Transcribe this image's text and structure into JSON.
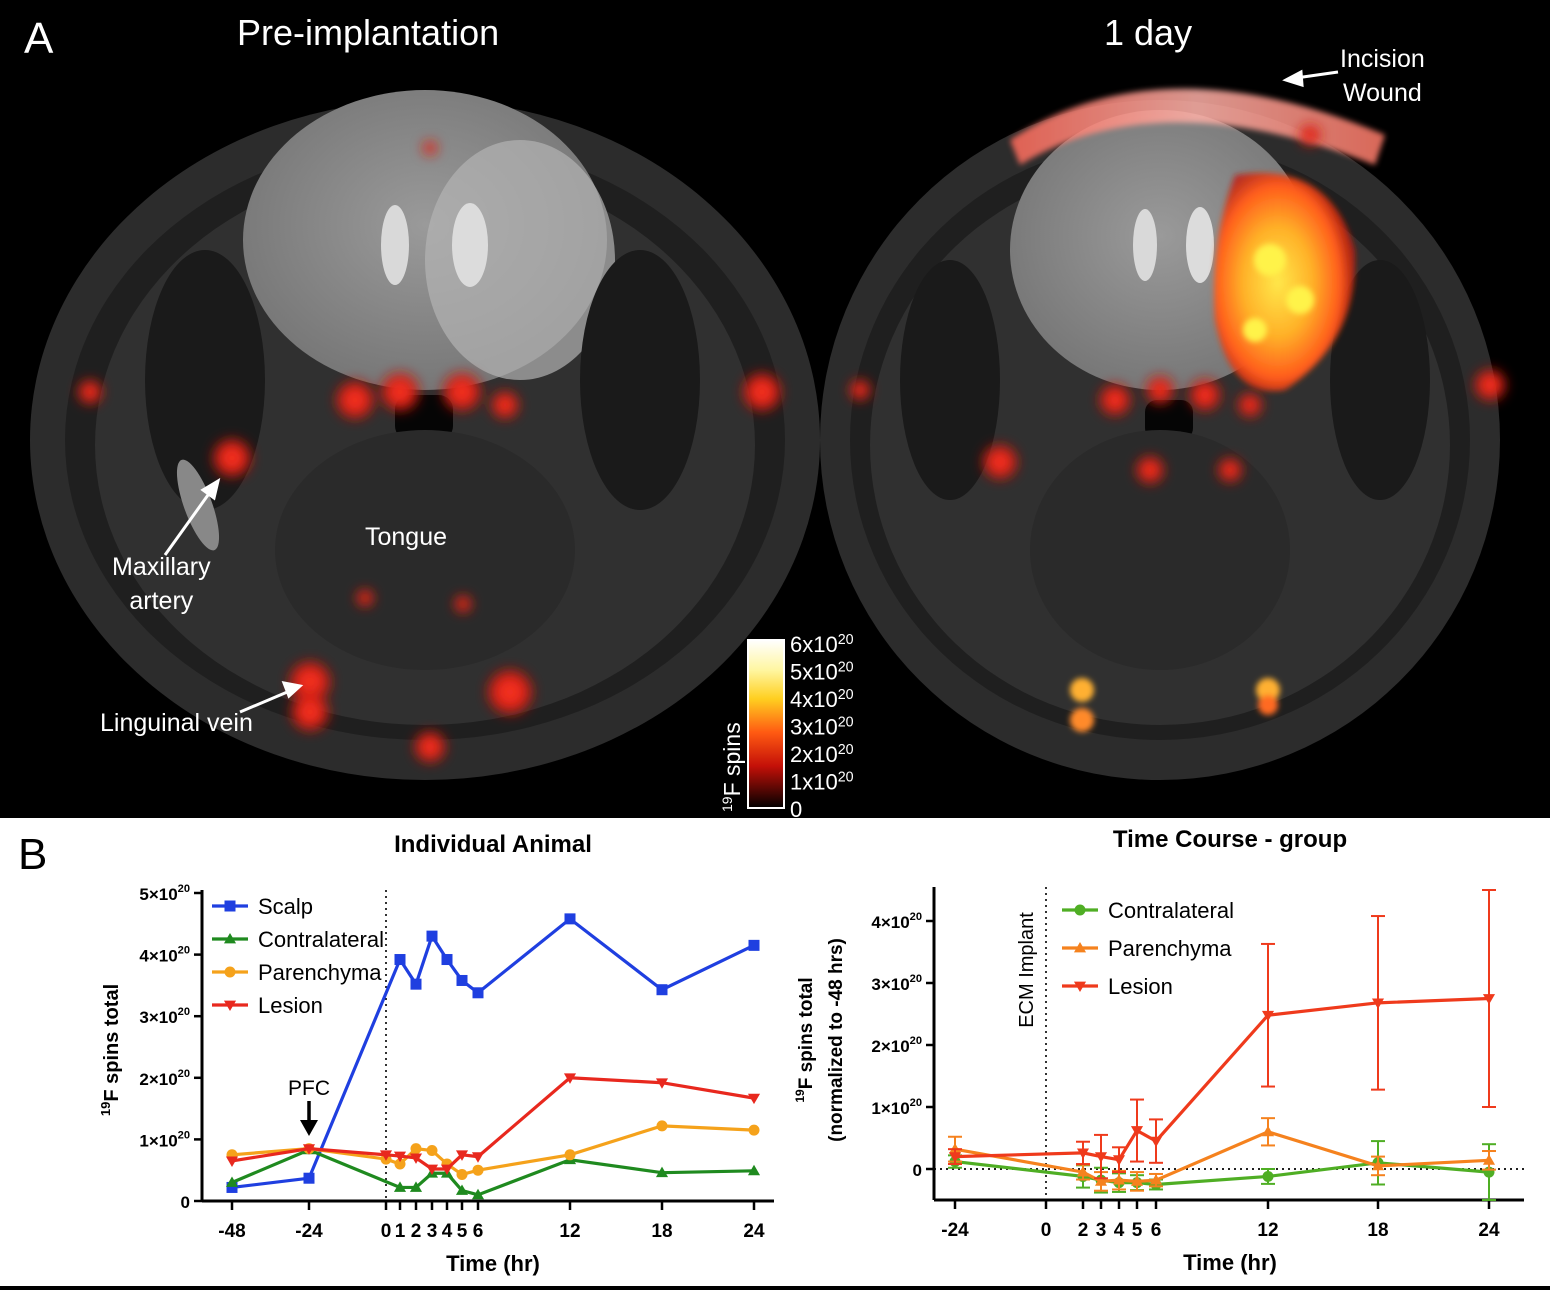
{
  "panel_a": {
    "letter": "A",
    "title_left": "Pre-implantation",
    "title_right": "1 day",
    "labels": {
      "tongue": "Tongue",
      "maxillary": "Maxillary\nartery",
      "linguinal": "Linguinal vein",
      "incision": "Incision\nWound"
    },
    "colorbar": {
      "title": "19F spins",
      "ticks": [
        "6x1020",
        "5x1020",
        "4x1020",
        "3x1020",
        "2x1020",
        "1x1020",
        "0"
      ]
    }
  },
  "panel_b": {
    "letter": "B"
  },
  "colors": {
    "scalp": "#1f3fe0",
    "contralateral_left": "#1f8a1f",
    "parenchyma_left": "#f5a21b",
    "lesion_left": "#e8281e",
    "contralateral_right": "#4fae24",
    "parenchyma_right": "#f5821e",
    "lesion_right": "#ef3a1c"
  },
  "chart_data": [
    {
      "type": "line",
      "title": "Individual Animal",
      "xlabel": "Time (hr)",
      "ylabel": "19F spins total",
      "xticks": [
        "-48",
        "-24",
        "0",
        "1",
        "2",
        "3",
        "4",
        "5",
        "6",
        "12",
        "18",
        "24"
      ],
      "yticks": [
        "0",
        "1×1020",
        "2×1020",
        "3×1020",
        "4×1020",
        "5×1020"
      ],
      "ylim": [
        0,
        5
      ],
      "y_unit": "×10^20",
      "x_categories": [
        -48,
        -24,
        0,
        1,
        2,
        3,
        4,
        5,
        6,
        12,
        18,
        24
      ],
      "vline_at": 0,
      "annotation": "PFC",
      "series": [
        {
          "name": "Scalp",
          "marker": "square",
          "x": [
            -48,
            -24,
            1,
            2,
            3,
            4,
            5,
            6,
            12,
            18,
            24
          ],
          "values": [
            0.22,
            0.37,
            3.92,
            3.52,
            4.3,
            3.92,
            3.58,
            3.38,
            4.58,
            3.43,
            4.15
          ]
        },
        {
          "name": "Contralateral",
          "marker": "triangle-up",
          "x": [
            -48,
            -24,
            1,
            2,
            3,
            4,
            5,
            6,
            12,
            18,
            24
          ],
          "values": [
            0.3,
            0.83,
            0.22,
            0.22,
            0.45,
            0.45,
            0.17,
            0.1,
            0.67,
            0.46,
            0.49
          ]
        },
        {
          "name": "Parenchyma",
          "marker": "circle",
          "x": [
            -48,
            -24,
            0,
            1,
            2,
            3,
            4,
            5,
            6,
            12,
            18,
            24
          ],
          "values": [
            0.75,
            0.85,
            0.68,
            0.6,
            0.85,
            0.82,
            0.6,
            0.43,
            0.5,
            0.75,
            1.22,
            1.15
          ]
        },
        {
          "name": "Lesion",
          "marker": "triangle-down",
          "x": [
            -48,
            -24,
            0,
            1,
            2,
            3,
            4,
            5,
            6,
            12,
            18,
            24
          ],
          "values": [
            0.65,
            0.85,
            0.75,
            0.73,
            0.7,
            0.52,
            0.52,
            0.75,
            0.72,
            2.0,
            1.92,
            1.67
          ]
        }
      ]
    },
    {
      "type": "line",
      "title": "Time Course - group",
      "xlabel": "Time (hr)",
      "ylabel": "19F spins total (normalized to -48 hrs)",
      "ylabel_line1": "19F spins total",
      "ylabel_line2": "(normalized to -48 hrs)",
      "xticks": [
        "-24",
        "0",
        "2",
        "3",
        "4",
        "5",
        "6",
        "12",
        "18",
        "24"
      ],
      "yticks": [
        "0",
        "1×1020",
        "2×1020",
        "3×1020",
        "4×1020"
      ],
      "ylim": [
        -0.5,
        4.5
      ],
      "y_unit": "×10^20",
      "x_categories": [
        -24,
        0,
        2,
        3,
        4,
        5,
        6,
        12,
        18,
        24
      ],
      "vline_at": 0,
      "vline_label": "ECM Implant",
      "series": [
        {
          "name": "Contralateral",
          "marker": "circle",
          "x": [
            -24,
            2,
            3,
            4,
            5,
            6,
            12,
            18,
            24
          ],
          "values": [
            0.12,
            -0.12,
            -0.18,
            -0.22,
            -0.22,
            -0.25,
            -0.12,
            0.1,
            -0.05
          ],
          "errors": [
            0.1,
            0.18,
            0.2,
            0.15,
            0.12,
            0.08,
            0.12,
            0.35,
            0.45
          ]
        },
        {
          "name": "Parenchyma",
          "marker": "triangle-up",
          "x": [
            -24,
            2,
            3,
            4,
            5,
            6,
            12,
            18,
            24
          ],
          "values": [
            0.32,
            -0.05,
            -0.2,
            -0.18,
            -0.2,
            -0.18,
            0.6,
            0.05,
            0.14
          ],
          "errors": [
            0.2,
            0.12,
            0.15,
            0.15,
            0.15,
            0.1,
            0.22,
            0.15,
            0.15
          ]
        },
        {
          "name": "Lesion",
          "marker": "triangle-down",
          "x": [
            -24,
            2,
            3,
            4,
            5,
            6,
            12,
            18,
            24
          ],
          "values": [
            0.2,
            0.26,
            0.2,
            0.15,
            0.62,
            0.45,
            2.48,
            2.68,
            2.75
          ],
          "errors": [
            0.12,
            0.18,
            0.35,
            0.2,
            0.5,
            0.35,
            1.15,
            1.4,
            1.75
          ]
        }
      ]
    }
  ]
}
